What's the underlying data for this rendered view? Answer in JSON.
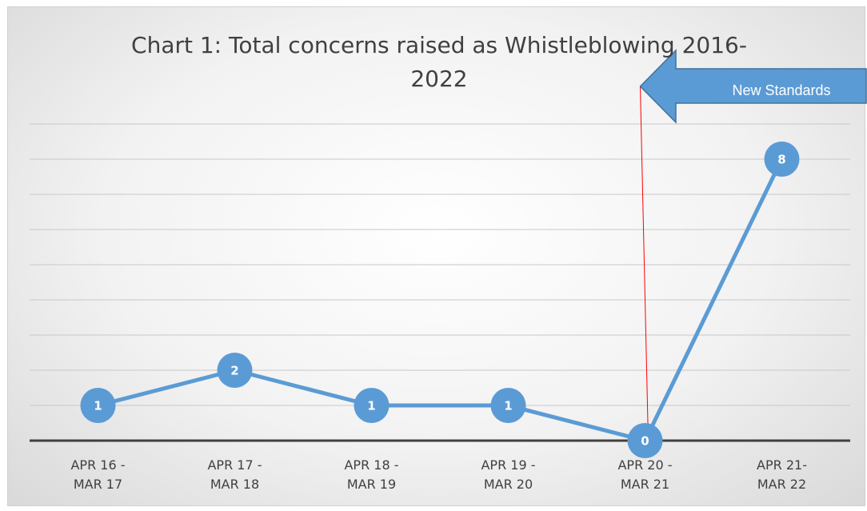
{
  "chart_data": {
    "type": "line",
    "title": "Chart 1: Total concerns raised as Whistleblowing 2016-2022",
    "annotation": "New Standards",
    "categories": [
      "APR 16 - MAR 17",
      "APR 17 - MAR 18",
      "APR 18 - MAR 19",
      "APR 19 - MAR 20",
      "APR 20 - MAR 21",
      "APR 21- MAR 22"
    ],
    "values": [
      1,
      2,
      1,
      1,
      0,
      8
    ],
    "color": "#5b9bd5",
    "ylim": [
      0,
      9
    ],
    "yticks": [
      0,
      1,
      2,
      3,
      4,
      5,
      6,
      7,
      8,
      9
    ],
    "grid": true
  }
}
